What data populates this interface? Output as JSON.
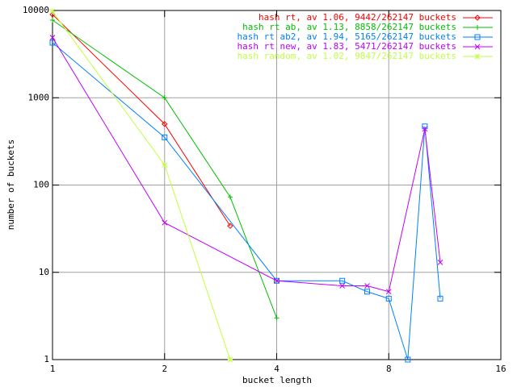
{
  "chart_data": {
    "type": "line",
    "xlabel": "bucket length",
    "ylabel": "number of buckets",
    "xscale": "log",
    "yscale": "log",
    "grid": true,
    "legend": "top-right",
    "xlim": [
      1,
      16
    ],
    "ylim": [
      1,
      10000
    ],
    "xticks": [
      1,
      2,
      4,
      8,
      16
    ],
    "yticks": [
      1,
      10,
      100,
      1000,
      10000
    ],
    "series": [
      {
        "name": "hash rt, av 1.06, 9442/262147 buckets",
        "color": "#ff0000",
        "marker": "diamond",
        "x": [
          1,
          2,
          3
        ],
        "values": [
          9000,
          500,
          34
        ]
      },
      {
        "name": "hash rt ab, av 1.13, 8858/262147 buckets",
        "color": "#00c000",
        "marker": "plus",
        "x": [
          1,
          2,
          3,
          4
        ],
        "values": [
          7750,
          1000,
          73,
          3
        ]
      },
      {
        "name": "hash rt ab2, av 1.94, 5165/262147 buckets",
        "color": "#0080ff",
        "marker": "square",
        "x": [
          1,
          2,
          4,
          6,
          7,
          8,
          9,
          10,
          11
        ],
        "values": [
          4270,
          352,
          8,
          8,
          6,
          5,
          1,
          470,
          5
        ]
      },
      {
        "name": "hash rt new, av 1.83, 5471/262147 buckets",
        "color": "#c000ff",
        "marker": "cross",
        "x": [
          1,
          2,
          4,
          6,
          7,
          8,
          10,
          11
        ],
        "values": [
          4900,
          37,
          8,
          7,
          7,
          6,
          440,
          13
        ]
      },
      {
        "name": "hash random, av 1.02, 9847/262147 buckets",
        "color": "#c0ff40",
        "marker": "star",
        "x": [
          1,
          2,
          3
        ],
        "values": [
          9800,
          170,
          1
        ]
      }
    ]
  }
}
